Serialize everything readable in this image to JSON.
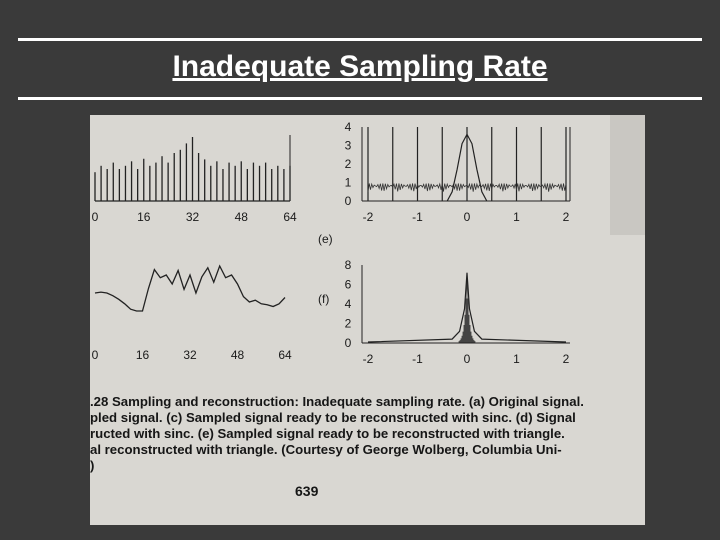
{
  "slide": {
    "title": "Inadequate Sampling Rate"
  },
  "figure": {
    "caption_lines": [
      ".28 Sampling and reconstruction: Inadequate sampling rate. (a) Original signal.",
      "pled signal. (c) Sampled signal ready to be reconstructed with sinc. (d) Signal",
      "ructed with sinc. (e) Sampled signal ready to be reconstructed with triangle.",
      "al reconstructed with triangle.   (Courtesy of George Wolberg, Columbia Uni-",
      ")"
    ],
    "page_number": "639",
    "panel_e_label": "(e)",
    "panel_f_label": "(f)"
  },
  "chart_data": [
    {
      "type": "bar",
      "panel": "spikes (top-left)",
      "x": [
        0,
        2,
        4,
        6,
        8,
        10,
        12,
        14,
        16,
        18,
        20,
        22,
        24,
        26,
        28,
        30,
        32,
        34,
        36,
        38,
        40,
        42,
        44,
        46,
        48,
        50,
        52,
        54,
        56,
        58,
        60,
        62,
        64
      ],
      "values": [
        0.45,
        0.55,
        0.5,
        0.6,
        0.5,
        0.55,
        0.62,
        0.5,
        0.66,
        0.55,
        0.6,
        0.7,
        0.6,
        0.75,
        0.8,
        0.9,
        1.0,
        0.75,
        0.65,
        0.55,
        0.62,
        0.5,
        0.6,
        0.55,
        0.62,
        0.5,
        0.6,
        0.55,
        0.6,
        0.5,
        0.55,
        0.5,
        0.55
      ],
      "xticks": [
        "0",
        "16",
        "32",
        "48",
        "64"
      ],
      "xlim": [
        0,
        64
      ],
      "grid": false
    },
    {
      "type": "line",
      "panel": "jagged signal (bottom-left)",
      "x": [
        0,
        2,
        4,
        6,
        8,
        10,
        12,
        14,
        16,
        18,
        20,
        22,
        24,
        26,
        28,
        30,
        32,
        34,
        36,
        38,
        40,
        42,
        44,
        46,
        48,
        50,
        52,
        54,
        56,
        58,
        60,
        62,
        64
      ],
      "values": [
        0.3,
        0.31,
        0.3,
        0.27,
        0.23,
        0.18,
        0.12,
        0.1,
        0.1,
        0.35,
        0.56,
        0.47,
        0.5,
        0.4,
        0.55,
        0.34,
        0.5,
        0.3,
        0.48,
        0.58,
        0.42,
        0.6,
        0.47,
        0.5,
        0.4,
        0.26,
        0.2,
        0.22,
        0.18,
        0.17,
        0.15,
        0.18,
        0.25
      ],
      "xticks": [
        "0",
        "16",
        "32",
        "48",
        "64"
      ],
      "xlim": [
        0,
        64
      ],
      "grid": false
    },
    {
      "type": "line",
      "panel": "(e)",
      "series": [
        {
          "x": [
            -2,
            -1.5,
            -1,
            -0.5,
            0,
            0.5,
            1,
            1.5,
            2
          ],
          "values": [
            4,
            4,
            4,
            4,
            4,
            4,
            4,
            4,
            4
          ]
        },
        {
          "x": [
            -0.4,
            -0.3,
            -0.2,
            -0.1,
            0,
            0.1,
            0.2,
            0.3,
            0.4
          ],
          "values": [
            0,
            0.5,
            1.7,
            3.1,
            3.6,
            3.1,
            1.7,
            0.5,
            0
          ]
        }
      ],
      "xticks": [
        "-2",
        "-1",
        "0",
        "1",
        "2"
      ],
      "yticks": [
        "0",
        "1",
        "2",
        "3",
        "4"
      ],
      "xlim": [
        -2,
        2
      ],
      "ylim": [
        0,
        4
      ],
      "grid": false
    },
    {
      "type": "line",
      "panel": "(f)",
      "series": [
        {
          "x": [
            -2,
            -0.3,
            -0.15,
            -0.05,
            0,
            0.05,
            0.15,
            0.3,
            2
          ],
          "values": [
            0.1,
            0.4,
            1.2,
            3.5,
            7.2,
            3.5,
            1.2,
            0.4,
            0.1
          ]
        }
      ],
      "xticks": [
        "-2",
        "-1",
        "0",
        "1",
        "2"
      ],
      "yticks": [
        "0",
        "2",
        "4",
        "6",
        "8"
      ],
      "xlim": [
        -2,
        2
      ],
      "ylim": [
        0,
        8
      ],
      "grid": false
    }
  ]
}
